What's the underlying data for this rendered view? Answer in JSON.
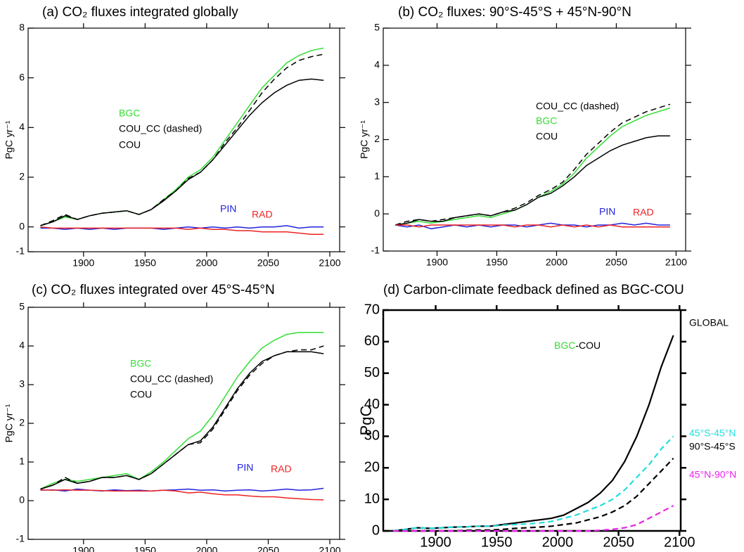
{
  "chart_data": [
    {
      "type": "line",
      "title": "(a) CO₂ fluxes integrated globally",
      "ylabel": "PgC yr⁻¹",
      "x": [
        1865,
        1875,
        1885,
        1895,
        1905,
        1915,
        1925,
        1935,
        1945,
        1955,
        1965,
        1975,
        1985,
        1995,
        2005,
        2015,
        2025,
        2035,
        2045,
        2055,
        2065,
        2075,
        2085,
        2095
      ],
      "xlim": [
        1855,
        2108
      ],
      "ylim": [
        -1,
        8
      ],
      "xticks": [
        1900,
        1950,
        2000,
        2050,
        2100
      ],
      "yticks": [
        -1,
        0,
        2,
        4,
        6,
        8
      ],
      "series": [
        {
          "name": "BGC",
          "color": "#33dd33",
          "dashed": false,
          "values": [
            0.05,
            0.2,
            0.4,
            0.3,
            0.45,
            0.55,
            0.6,
            0.65,
            0.5,
            0.7,
            1.1,
            1.5,
            2.0,
            2.3,
            2.8,
            3.5,
            4.2,
            4.9,
            5.6,
            6.1,
            6.6,
            6.9,
            7.1,
            7.2
          ]
        },
        {
          "name": "COU_CC (dashed)",
          "color": "#000000",
          "dashed": true,
          "values": [
            0.05,
            0.25,
            0.5,
            0.3,
            0.45,
            0.55,
            0.6,
            0.65,
            0.5,
            0.7,
            1.1,
            1.45,
            1.95,
            2.2,
            2.7,
            3.4,
            4.0,
            4.7,
            5.4,
            5.95,
            6.4,
            6.7,
            6.85,
            6.95
          ]
        },
        {
          "name": "COU",
          "color": "#000000",
          "dashed": false,
          "values": [
            0.05,
            0.2,
            0.45,
            0.3,
            0.45,
            0.55,
            0.6,
            0.65,
            0.5,
            0.7,
            1.05,
            1.45,
            1.9,
            2.2,
            2.7,
            3.3,
            3.9,
            4.5,
            5.0,
            5.4,
            5.7,
            5.9,
            5.95,
            5.9
          ]
        },
        {
          "name": "PIN",
          "color": "#2222dd",
          "dashed": false,
          "values": [
            -0.05,
            -0.05,
            -0.1,
            -0.05,
            -0.1,
            -0.05,
            -0.1,
            -0.05,
            -0.05,
            -0.05,
            -0.1,
            -0.05,
            0.0,
            -0.05,
            0.0,
            -0.05,
            0.0,
            -0.05,
            0.0,
            0.0,
            0.05,
            -0.05,
            0.0,
            0.0
          ]
        },
        {
          "name": "RAD",
          "color": "#ee2222",
          "dashed": false,
          "values": [
            0.0,
            -0.05,
            -0.05,
            -0.05,
            -0.05,
            -0.05,
            -0.05,
            -0.05,
            -0.05,
            -0.05,
            -0.05,
            -0.05,
            -0.1,
            -0.05,
            -0.1,
            -0.1,
            -0.15,
            -0.15,
            -0.2,
            -0.2,
            -0.2,
            -0.25,
            -0.3,
            -0.3
          ]
        }
      ]
    },
    {
      "type": "line",
      "title": "(b) CO₂ fluxes:  90°S-45°S  +  45°N-90°N",
      "ylabel": "PgC yr⁻¹",
      "x": [
        1865,
        1875,
        1885,
        1895,
        1905,
        1915,
        1925,
        1935,
        1945,
        1955,
        1965,
        1975,
        1985,
        1995,
        2005,
        2015,
        2025,
        2035,
        2045,
        2055,
        2065,
        2075,
        2085,
        2095
      ],
      "xlim": [
        1855,
        2108
      ],
      "ylim": [
        -1,
        5
      ],
      "xticks": [
        1900,
        1950,
        2000,
        2050,
        2100
      ],
      "yticks": [
        -1,
        0,
        1,
        2,
        3,
        4,
        5
      ],
      "series": [
        {
          "name": "BGC",
          "color": "#33dd33",
          "dashed": false,
          "values": [
            -0.3,
            -0.25,
            -0.2,
            -0.25,
            -0.2,
            -0.15,
            -0.1,
            -0.05,
            -0.1,
            0.0,
            0.1,
            0.25,
            0.45,
            0.6,
            0.8,
            1.1,
            1.5,
            1.8,
            2.1,
            2.35,
            2.5,
            2.65,
            2.75,
            2.85
          ]
        },
        {
          "name": "COU_CC (dashed)",
          "color": "#000000",
          "dashed": true,
          "values": [
            -0.3,
            -0.2,
            -0.15,
            -0.2,
            -0.15,
            -0.1,
            -0.05,
            0.0,
            -0.05,
            0.05,
            0.15,
            0.3,
            0.5,
            0.65,
            0.85,
            1.2,
            1.6,
            1.9,
            2.2,
            2.45,
            2.6,
            2.75,
            2.85,
            2.95
          ]
        },
        {
          "name": "COU",
          "color": "#000000",
          "dashed": false,
          "values": [
            -0.3,
            -0.25,
            -0.15,
            -0.2,
            -0.2,
            -0.1,
            -0.05,
            0.0,
            -0.05,
            0.05,
            0.1,
            0.25,
            0.45,
            0.55,
            0.75,
            1.0,
            1.3,
            1.5,
            1.7,
            1.85,
            1.95,
            2.05,
            2.1,
            2.1
          ]
        },
        {
          "name": "PIN",
          "color": "#2222dd",
          "dashed": false,
          "values": [
            -0.3,
            -0.35,
            -0.3,
            -0.4,
            -0.35,
            -0.3,
            -0.35,
            -0.3,
            -0.35,
            -0.3,
            -0.3,
            -0.35,
            -0.3,
            -0.25,
            -0.3,
            -0.3,
            -0.35,
            -0.3,
            -0.3,
            -0.25,
            -0.3,
            -0.25,
            -0.3,
            -0.3
          ]
        },
        {
          "name": "RAD",
          "color": "#ee2222",
          "dashed": false,
          "values": [
            -0.3,
            -0.3,
            -0.35,
            -0.3,
            -0.3,
            -0.3,
            -0.3,
            -0.3,
            -0.3,
            -0.3,
            -0.35,
            -0.3,
            -0.3,
            -0.35,
            -0.3,
            -0.35,
            -0.3,
            -0.35,
            -0.3,
            -0.35,
            -0.35,
            -0.35,
            -0.35,
            -0.35
          ]
        }
      ]
    },
    {
      "type": "line",
      "title": "(c) CO₂ fluxes integrated over 45°S-45°N",
      "ylabel": "PgC yr⁻¹",
      "x": [
        1865,
        1875,
        1885,
        1895,
        1905,
        1915,
        1925,
        1935,
        1945,
        1955,
        1965,
        1975,
        1985,
        1995,
        2005,
        2015,
        2025,
        2035,
        2045,
        2055,
        2065,
        2075,
        2085,
        2095
      ],
      "xlim": [
        1855,
        2108
      ],
      "ylim": [
        -1,
        5
      ],
      "xticks": [
        1900,
        1950,
        2000,
        2050,
        2100
      ],
      "yticks": [
        -1,
        0,
        1,
        2,
        3,
        4,
        5
      ],
      "series": [
        {
          "name": "BGC",
          "color": "#33dd33",
          "dashed": false,
          "values": [
            0.3,
            0.45,
            0.55,
            0.5,
            0.55,
            0.6,
            0.65,
            0.7,
            0.55,
            0.75,
            1.0,
            1.3,
            1.6,
            1.8,
            2.2,
            2.7,
            3.2,
            3.6,
            3.95,
            4.15,
            4.3,
            4.35,
            4.35,
            4.35
          ]
        },
        {
          "name": "COU_CC (dashed)",
          "color": "#000000",
          "dashed": true,
          "values": [
            0.3,
            0.4,
            0.6,
            0.45,
            0.5,
            0.6,
            0.6,
            0.65,
            0.55,
            0.7,
            0.95,
            1.2,
            1.45,
            1.5,
            1.85,
            2.35,
            2.85,
            3.25,
            3.55,
            3.75,
            3.85,
            3.9,
            3.9,
            4.0
          ]
        },
        {
          "name": "COU",
          "color": "#000000",
          "dashed": false,
          "values": [
            0.3,
            0.4,
            0.55,
            0.45,
            0.5,
            0.6,
            0.6,
            0.65,
            0.55,
            0.7,
            0.95,
            1.2,
            1.45,
            1.55,
            1.9,
            2.4,
            2.9,
            3.3,
            3.6,
            3.75,
            3.85,
            3.85,
            3.85,
            3.8
          ]
        },
        {
          "name": "PIN",
          "color": "#2222dd",
          "dashed": false,
          "values": [
            0.27,
            0.28,
            0.25,
            0.3,
            0.27,
            0.25,
            0.28,
            0.26,
            0.27,
            0.25,
            0.27,
            0.28,
            0.3,
            0.27,
            0.28,
            0.25,
            0.27,
            0.28,
            0.25,
            0.27,
            0.3,
            0.27,
            0.28,
            0.32
          ]
        },
        {
          "name": "RAD",
          "color": "#ee2222",
          "dashed": false,
          "values": [
            0.28,
            0.27,
            0.28,
            0.27,
            0.27,
            0.26,
            0.25,
            0.25,
            0.25,
            0.25,
            0.27,
            0.25,
            0.2,
            0.22,
            0.18,
            0.15,
            0.15,
            0.12,
            0.1,
            0.1,
            0.07,
            0.05,
            0.03,
            0.02
          ]
        }
      ]
    },
    {
      "type": "line",
      "title": "(d) Carbon-climate feedback defined as BGC-COU",
      "ylabel": "PgC",
      "annotation": [
        {
          "text": "BGC",
          "color": "#33dd33"
        },
        {
          "text": "-COU",
          "color": "#000000"
        }
      ],
      "x": [
        1865,
        1875,
        1885,
        1895,
        1905,
        1915,
        1925,
        1935,
        1945,
        1955,
        1965,
        1975,
        1985,
        1995,
        2005,
        2015,
        2025,
        2035,
        2045,
        2055,
        2065,
        2075,
        2085,
        2095
      ],
      "xlim": [
        1857,
        2101
      ],
      "ylim": [
        0,
        70
      ],
      "xticks": [
        1900,
        1950,
        2000,
        2050,
        2100
      ],
      "yticks": [
        0,
        10,
        20,
        30,
        40,
        50,
        60,
        70
      ],
      "series": [
        {
          "name": "GLOBAL",
          "color": "#000000",
          "dashed": false,
          "values": [
            0,
            0.5,
            1,
            0.8,
            1,
            1.2,
            1.3,
            1.5,
            1.5,
            2,
            2.5,
            3,
            3.5,
            4,
            5,
            7,
            9,
            12,
            16,
            22,
            30,
            40,
            52,
            62
          ]
        },
        {
          "name": "45°S-45°N",
          "color": "#22dddd",
          "dashed": true,
          "values": [
            0,
            0.5,
            1,
            0.8,
            1,
            1.2,
            1.3,
            1.5,
            1.5,
            1.8,
            2,
            2.2,
            2.5,
            3,
            4,
            5,
            6.5,
            8,
            10,
            13,
            17,
            21,
            26,
            30
          ]
        },
        {
          "name": "90°S-45°S",
          "color": "#000000",
          "dashed": true,
          "values": [
            0,
            0,
            0,
            0,
            0,
            0,
            0.2,
            0.3,
            0.3,
            0.5,
            0.8,
            1,
            1.2,
            1.5,
            2,
            2.5,
            3.5,
            4.5,
            6,
            8,
            11,
            15,
            19,
            23
          ]
        },
        {
          "name": "45°N-90°N",
          "color": "#ee22ee",
          "dashed": true,
          "values": [
            0,
            0,
            0,
            0,
            0,
            0,
            0,
            0,
            0,
            0,
            0,
            0,
            0,
            0,
            0,
            0,
            0,
            0.2,
            0.5,
            1,
            2,
            4,
            6,
            8
          ]
        }
      ]
    }
  ]
}
